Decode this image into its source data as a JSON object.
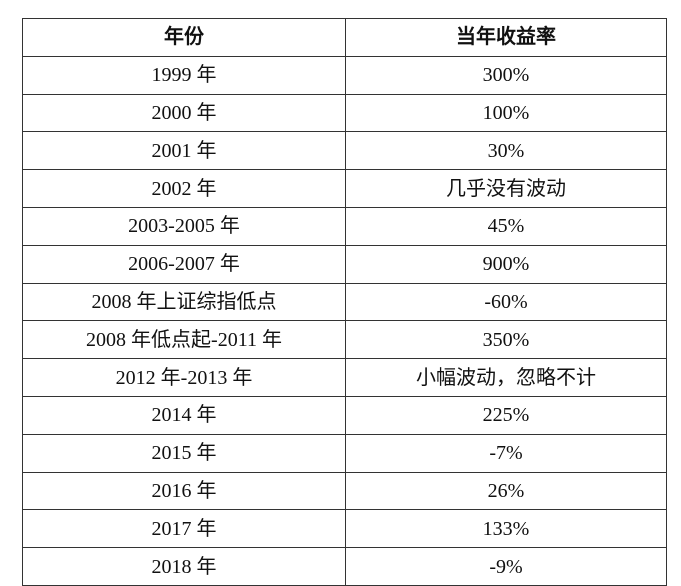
{
  "table": {
    "header": [
      "年份",
      "当年收益率"
    ],
    "rows": [
      [
        "1999 年",
        "300%"
      ],
      [
        "2000 年",
        "100%"
      ],
      [
        "2001 年",
        "30%"
      ],
      [
        "2002 年",
        "几乎没有波动"
      ],
      [
        "2003-2005 年",
        "45%"
      ],
      [
        "2006-2007 年",
        "900%"
      ],
      [
        "2008 年上证综指低点",
        "-60%"
      ],
      [
        "2008 年低点起-2011 年",
        "350%"
      ],
      [
        "2012 年-2013 年",
        "小幅波动，忽略不计"
      ],
      [
        "2014 年",
        "225%"
      ],
      [
        "2015 年",
        "-7%"
      ],
      [
        "2016 年",
        "26%"
      ],
      [
        "2017 年",
        "133%"
      ],
      [
        "2018 年",
        "-9%"
      ]
    ]
  }
}
